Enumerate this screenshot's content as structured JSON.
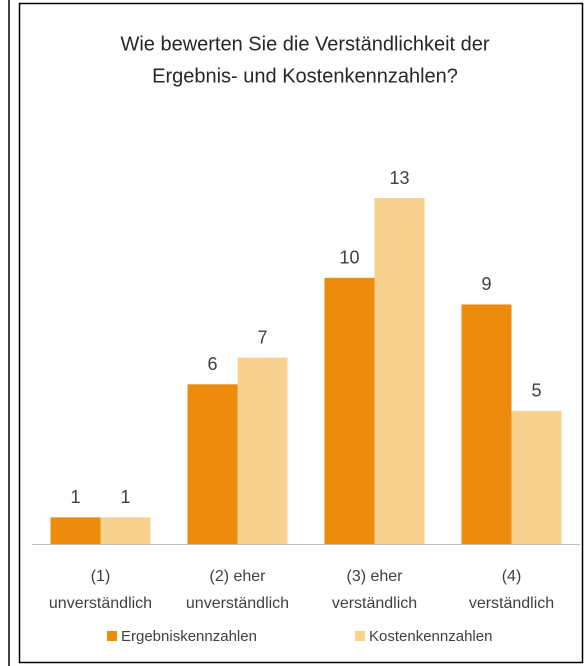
{
  "chart_data": {
    "type": "bar",
    "title": [
      "Wie bewerten Sie die Verständlichkeit der",
      "Ergebnis- und Kostenkennzahlen?"
    ],
    "categories": [
      [
        "(1)",
        "unverständlich"
      ],
      [
        "(2) eher",
        "unverständlich"
      ],
      [
        "(3) eher",
        "verständlich"
      ],
      [
        "(4)",
        "verständlich"
      ]
    ],
    "series": [
      {
        "name": "Ergebniskennzahlen",
        "color": "#ED8B0C",
        "values": [
          1,
          6,
          10,
          9
        ]
      },
      {
        "name": "Kostenkennzahlen",
        "color": "#F9D18E",
        "values": [
          1,
          7,
          13,
          5
        ]
      }
    ],
    "legend": "bottom"
  }
}
